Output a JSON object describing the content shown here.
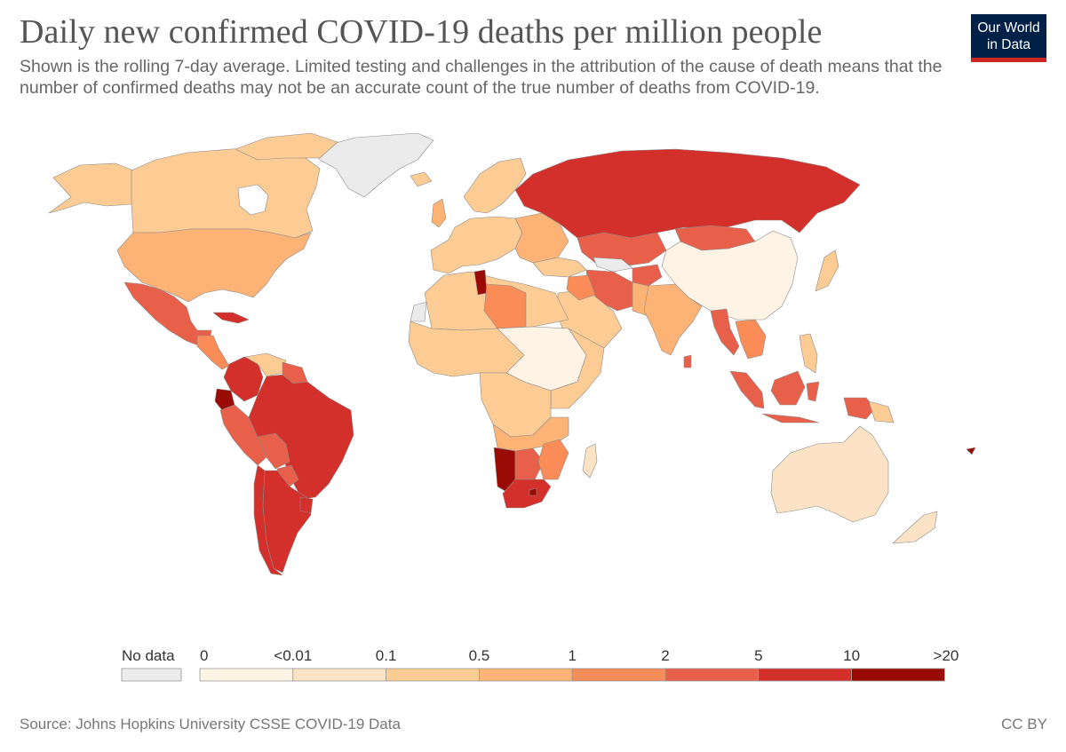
{
  "header": {
    "title": "Daily new confirmed COVID-19 deaths per million people",
    "subtitle": "Shown is the rolling 7-day average. Limited testing and challenges in the attribution of the cause of death means that the number of confirmed deaths may not be an accurate count of the true number of deaths from COVID-19."
  },
  "logo": {
    "line1": "Our World",
    "line2": "in Data"
  },
  "legend": {
    "no_data_label": "No data",
    "no_data_color": "#ebebeb",
    "thresholds": [
      "0",
      "<0.01",
      "0.1",
      "0.5",
      "1",
      "2",
      "5",
      "10",
      ">20"
    ],
    "colors": [
      "#fef3e5",
      "#fde3c5",
      "#fdcb94",
      "#fcb375",
      "#f98c57",
      "#e9604a",
      "#d4302b",
      "#9b0b06"
    ]
  },
  "footer": {
    "source": "Source: Johns Hopkins University CSSE COVID-19 Data",
    "license": "CC BY"
  }
}
